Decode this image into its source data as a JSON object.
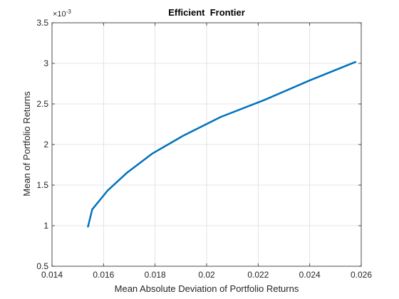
{
  "chart_data": {
    "type": "line",
    "title": "Efficient  Frontier",
    "xlabel": "Mean Absolute Deviation of Portfolio Returns",
    "ylabel": "Mean of Portfolio Returns",
    "y_exponent_label": "×10",
    "y_exponent_power": "-3",
    "xlim": [
      0.014,
      0.026
    ],
    "ylim": [
      0.5,
      3.5
    ],
    "x_ticks": [
      0.014,
      0.016,
      0.018,
      0.02,
      0.022,
      0.024,
      0.026
    ],
    "x_tick_labels": [
      "0.014",
      "0.016",
      "0.018",
      "0.02",
      "0.022",
      "0.024",
      "0.026"
    ],
    "y_ticks": [
      0.5,
      1,
      1.5,
      2,
      2.5,
      3,
      3.5
    ],
    "y_tick_labels": [
      "0.5",
      "1",
      "1.5",
      "2",
      "2.5",
      "3",
      "3.5"
    ],
    "grid": true,
    "line_color": "#0072BD",
    "series": [
      {
        "x": [
          0.01539,
          0.01556,
          0.01615,
          0.0169,
          0.0179,
          0.0191,
          0.02055,
          0.02225,
          0.024,
          0.0258
        ],
        "y": [
          0.98,
          1.2,
          1.43,
          1.65,
          1.89,
          2.11,
          2.34,
          2.55,
          2.79,
          3.02
        ]
      }
    ]
  }
}
